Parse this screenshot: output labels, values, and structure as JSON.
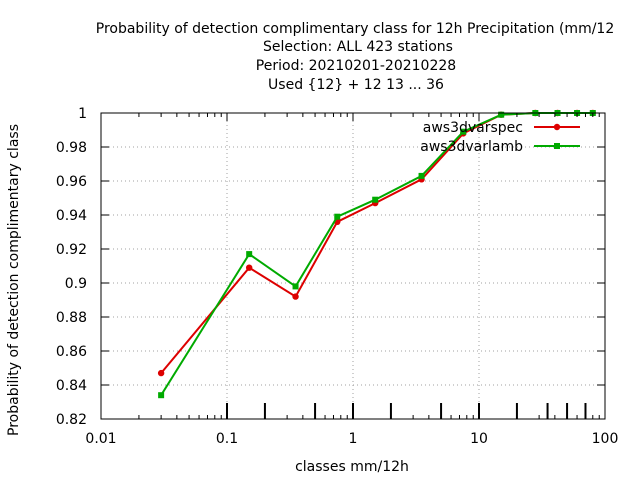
{
  "chart_data": {
    "type": "line",
    "title_lines": [
      "Probability of detection complimentary class  for 12h Precipitation (mm/12",
      "Selection: ALL     423 stations",
      "Period: 20210201-20210228",
      "Used {12} + 12 13 ... 36"
    ],
    "xlabel": "classes mm/12h",
    "ylabel": "Probability of detection complimentary class",
    "x_scale": "log",
    "xlim": [
      0.01,
      100
    ],
    "ylim": [
      0.82,
      1.0
    ],
    "x_ticks": [
      0.01,
      0.1,
      1,
      10,
      100
    ],
    "x_tick_labels": [
      "0.01",
      "0.1",
      "1",
      "10",
      "100"
    ],
    "y_ticks": [
      0.82,
      0.84,
      0.86,
      0.88,
      0.9,
      0.92,
      0.94,
      0.96,
      0.98,
      1.0
    ],
    "y_tick_labels": [
      "0.82",
      "0.84",
      "0.86",
      "0.88",
      "0.9",
      "0.92",
      "0.94",
      "0.96",
      "0.98",
      "1"
    ],
    "class_marks": [
      0.1,
      0.2,
      0.5,
      1,
      2,
      5,
      10,
      20,
      35,
      50,
      70
    ],
    "grid": true,
    "legend_position": "top-right",
    "series": [
      {
        "name": "aws3dvarspec",
        "color": "#dd0000",
        "marker": "circle",
        "x": [
          0.03,
          0.15,
          0.35,
          0.75,
          1.5,
          3.5,
          7.5,
          15,
          28,
          42,
          60,
          80
        ],
        "y": [
          0.847,
          0.909,
          0.892,
          0.936,
          0.947,
          0.961,
          0.988,
          0.999,
          1.0,
          1.0,
          1.0,
          1.0
        ]
      },
      {
        "name": "aws3dvarlamb",
        "color": "#00aa00",
        "marker": "square",
        "x": [
          0.03,
          0.15,
          0.35,
          0.75,
          1.5,
          3.5,
          7.5,
          15,
          28,
          42,
          60,
          80
        ],
        "y": [
          0.834,
          0.917,
          0.898,
          0.939,
          0.949,
          0.963,
          0.989,
          0.999,
          1.0,
          1.0,
          1.0,
          1.0
        ]
      }
    ]
  }
}
